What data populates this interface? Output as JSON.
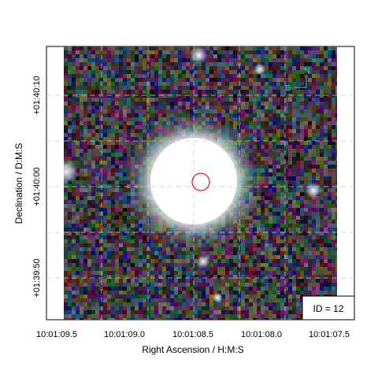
{
  "figure": {
    "xlabel": "Right Ascension / H:M:S",
    "ylabel": "Declination / D:M:S",
    "x_ticks": [
      "10:01:09.5",
      "10:01:09.0",
      "10:01:08.5",
      "10:01:08.0",
      "10:01:07.5"
    ],
    "y_ticks": [
      "+01:40:10",
      "+01:40:00",
      "+01:39:50"
    ],
    "id_label": "ID = 12",
    "compass": {
      "north": "N",
      "east": "E"
    },
    "colors": {
      "marker": "#ff1a1a",
      "compass": "#2cff2c",
      "grid": "#c8c8c8",
      "frame": "#000000"
    },
    "background_seed": 12
  }
}
